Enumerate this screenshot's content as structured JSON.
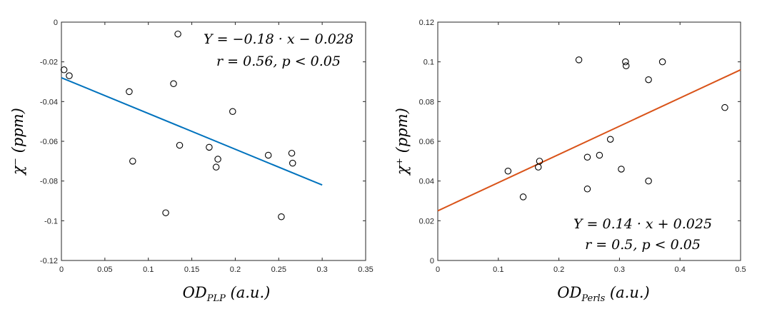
{
  "chart_data": [
    {
      "type": "scatter",
      "xlabel_main": "OD",
      "xlabel_sub": "PLP",
      "xlabel_unit": " (a.u.)",
      "ylabel": "χ⁻ (ppm)",
      "xlim": [
        0,
        0.35
      ],
      "ylim": [
        -0.12,
        0
      ],
      "xticks": [
        0,
        0.05,
        0.1,
        0.15,
        0.2,
        0.25,
        0.3,
        0.35
      ],
      "xtick_labels": [
        "0",
        "0.05",
        "0.1",
        "0.15",
        "0.2",
        "0.25",
        "0.3",
        "0.35"
      ],
      "yticks": [
        0,
        -0.02,
        -0.04,
        -0.06,
        -0.08,
        -0.1,
        -0.12
      ],
      "ytick_labels": [
        "0",
        "-0.02",
        "-0.04",
        "-0.06",
        "-0.08",
        "-0.1",
        "-0.12"
      ],
      "points": [
        [
          0.003,
          -0.024
        ],
        [
          0.009,
          -0.027
        ],
        [
          0.078,
          -0.035
        ],
        [
          0.082,
          -0.07
        ],
        [
          0.12,
          -0.096
        ],
        [
          0.129,
          -0.031
        ],
        [
          0.134,
          -0.006
        ],
        [
          0.136,
          -0.062
        ],
        [
          0.17,
          -0.063
        ],
        [
          0.178,
          -0.073
        ],
        [
          0.18,
          -0.069
        ],
        [
          0.197,
          -0.045
        ],
        [
          0.238,
          -0.067
        ],
        [
          0.253,
          -0.098
        ],
        [
          0.265,
          -0.066
        ],
        [
          0.266,
          -0.071
        ]
      ],
      "fit": {
        "x": [
          0,
          0.3
        ],
        "y": [
          -0.028,
          -0.082
        ],
        "color": "#0072BD"
      },
      "annotation": [
        "Y = −0.18 · x − 0.028",
        "r = 0.56, p < 0.05"
      ],
      "annotation_position": "top-right",
      "grid": false
    },
    {
      "type": "scatter",
      "xlabel_main": "OD",
      "xlabel_sub": "Perls",
      "xlabel_unit": " (a.u.)",
      "ylabel": "χ⁺ (ppm)",
      "xlim": [
        0,
        0.5
      ],
      "ylim": [
        0,
        0.12
      ],
      "xticks": [
        0,
        0.1,
        0.2,
        0.3,
        0.4,
        0.5
      ],
      "xtick_labels": [
        "0",
        "0.1",
        "0.2",
        "0.3",
        "0.4",
        "0.5"
      ],
      "yticks": [
        0,
        0.02,
        0.04,
        0.06,
        0.08,
        0.1,
        0.12
      ],
      "ytick_labels": [
        "0",
        "0.02",
        "0.04",
        "0.06",
        "0.08",
        "0.1",
        "0.12"
      ],
      "points": [
        [
          0.116,
          0.045
        ],
        [
          0.141,
          0.032
        ],
        [
          0.166,
          0.047
        ],
        [
          0.168,
          0.05
        ],
        [
          0.233,
          0.101
        ],
        [
          0.247,
          0.052
        ],
        [
          0.247,
          0.036
        ],
        [
          0.267,
          0.053
        ],
        [
          0.285,
          0.061
        ],
        [
          0.303,
          0.046
        ],
        [
          0.31,
          0.1
        ],
        [
          0.311,
          0.098
        ],
        [
          0.348,
          0.091
        ],
        [
          0.348,
          0.04
        ],
        [
          0.371,
          0.1
        ],
        [
          0.474,
          0.077
        ]
      ],
      "fit": {
        "x": [
          0,
          0.5
        ],
        "y": [
          0.025,
          0.096
        ],
        "color": "#D95319"
      },
      "annotation": [
        "Y = 0.14 · x + 0.025",
        "r = 0.5, p < 0.05"
      ],
      "annotation_position": "bottom-right",
      "grid": false
    }
  ]
}
